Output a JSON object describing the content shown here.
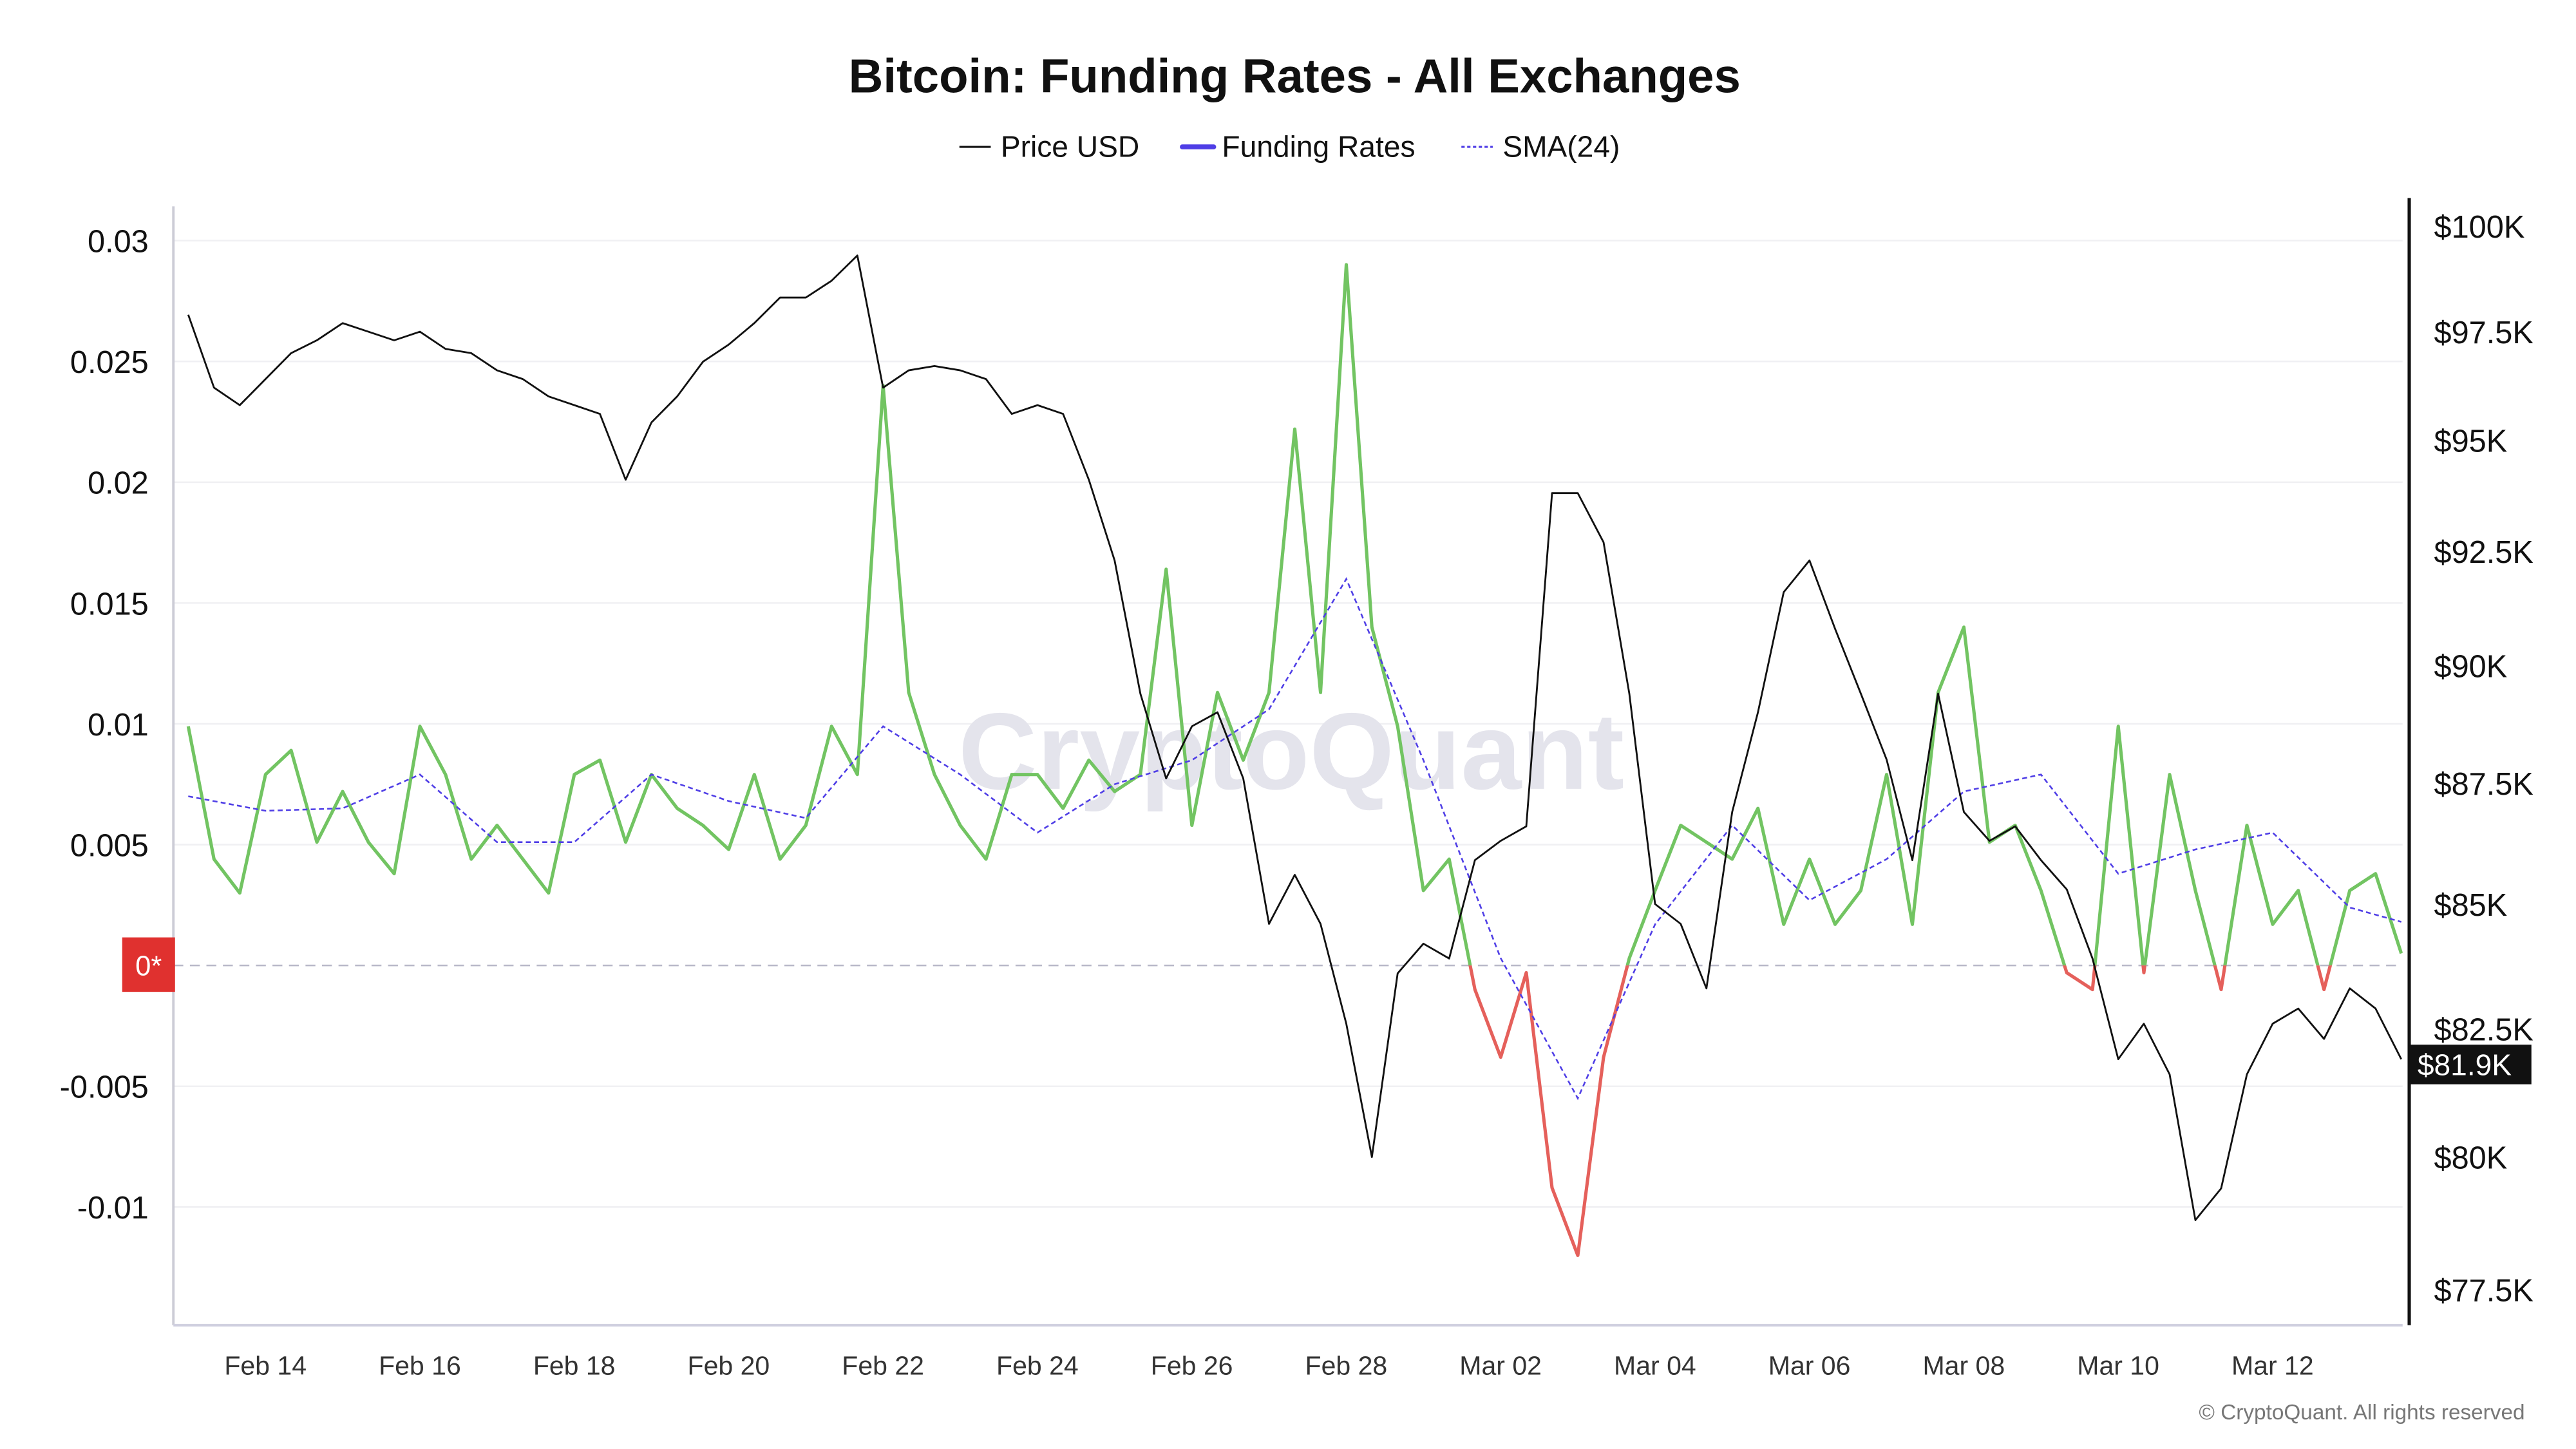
{
  "chart_data": {
    "type": "line",
    "title": "Bitcoin: Funding Rates - All Exchanges",
    "legend": {
      "placement": "top-center",
      "items": [
        {
          "label": "Price USD",
          "color": "#111111",
          "style": "solid-thin"
        },
        {
          "label": "Funding Rates",
          "color": "#4f3ee6",
          "style": "solid"
        },
        {
          "label": "SMA(24)",
          "color": "#4f3ee6",
          "style": "dashed"
        }
      ]
    },
    "colors": {
      "positive": "#72c462",
      "negative": "#e5605b",
      "price": "#111111",
      "sma": "#4f3ee6",
      "zero_badge": "#e0312f",
      "last_price_badge": "#111111"
    },
    "left_axis": {
      "ticks": [
        0.03,
        0.025,
        0.02,
        0.015,
        0.01,
        0.005,
        -0.005,
        -0.01
      ],
      "tick_labels": [
        "0.03",
        "0.025",
        "0.02",
        "0.015",
        "0.01",
        "0.005",
        "-0.005",
        "-0.01"
      ],
      "zero_label": "0*",
      "range": [
        -0.0127,
        0.0315
      ]
    },
    "right_axis": {
      "scale": "log",
      "ticks": [
        100000,
        97500,
        95000,
        92500,
        90000,
        87500,
        85000,
        82500,
        80000,
        77500
      ],
      "tick_labels": [
        "$100K",
        "$97.5K",
        "$95K",
        "$92.5K",
        "$90K",
        "$87.5K",
        "$85K",
        "$82.5K",
        "$80K",
        "$77.5K"
      ],
      "last_value_label": "$81.9K"
    },
    "x_axis": {
      "tick_labels": [
        "Feb 14",
        "Feb 16",
        "Feb 18",
        "Feb 20",
        "Feb 22",
        "Feb 24",
        "Feb 26",
        "Feb 28",
        "Mar 02",
        "Mar 04",
        "Mar 06",
        "Mar 08",
        "Mar 10",
        "Mar 12"
      ]
    },
    "grid": true,
    "x": [
      "Feb 13 00:00",
      "Feb 13 08:00",
      "Feb 13 16:00",
      "Feb 14 00:00",
      "Feb 14 08:00",
      "Feb 14 16:00",
      "Feb 15 00:00",
      "Feb 15 08:00",
      "Feb 15 16:00",
      "Feb 16 00:00",
      "Feb 16 08:00",
      "Feb 16 16:00",
      "Feb 17 00:00",
      "Feb 17 08:00",
      "Feb 17 16:00",
      "Feb 18 00:00",
      "Feb 18 08:00",
      "Feb 18 16:00",
      "Feb 19 00:00",
      "Feb 19 08:00",
      "Feb 19 16:00",
      "Feb 20 00:00",
      "Feb 20 08:00",
      "Feb 20 16:00",
      "Feb 21 00:00",
      "Feb 21 08:00",
      "Feb 21 16:00",
      "Feb 22 00:00",
      "Feb 22 08:00",
      "Feb 22 16:00",
      "Feb 23 00:00",
      "Feb 23 08:00",
      "Feb 23 16:00",
      "Feb 24 00:00",
      "Feb 24 08:00",
      "Feb 24 16:00",
      "Feb 25 00:00",
      "Feb 25 08:00",
      "Feb 25 16:00",
      "Feb 26 00:00",
      "Feb 26 08:00",
      "Feb 26 16:00",
      "Feb 27 00:00",
      "Feb 27 08:00",
      "Feb 27 16:00",
      "Feb 28 00:00",
      "Feb 28 08:00",
      "Feb 28 16:00",
      "Mar 01 00:00",
      "Mar 01 08:00",
      "Mar 01 16:00",
      "Mar 02 00:00",
      "Mar 02 08:00",
      "Mar 02 16:00",
      "Mar 03 00:00",
      "Mar 03 08:00",
      "Mar 03 16:00",
      "Mar 04 00:00",
      "Mar 04 08:00",
      "Mar 04 16:00",
      "Mar 05 00:00",
      "Mar 05 08:00",
      "Mar 05 16:00",
      "Mar 06 00:00",
      "Mar 06 08:00",
      "Mar 06 16:00",
      "Mar 07 00:00",
      "Mar 07 08:00",
      "Mar 07 16:00",
      "Mar 08 00:00",
      "Mar 08 08:00",
      "Mar 08 16:00",
      "Mar 09 00:00",
      "Mar 09 08:00",
      "Mar 09 16:00",
      "Mar 10 00:00",
      "Mar 10 08:00",
      "Mar 10 16:00",
      "Mar 11 00:00",
      "Mar 11 08:00",
      "Mar 11 16:00",
      "Mar 12 00:00",
      "Mar 12 08:00",
      "Mar 12 16:00",
      "Mar 13 00:00",
      "Mar 13 08:00",
      "Mar 13 16:00"
    ],
    "series": [
      {
        "name": "Price USD",
        "axis": "right",
        "values": [
          97900,
          96200,
          95800,
          96400,
          97000,
          97300,
          97700,
          97500,
          97300,
          97500,
          97100,
          97000,
          96600,
          96400,
          96000,
          95800,
          95600,
          94100,
          95400,
          96000,
          96800,
          97200,
          97700,
          98300,
          98300,
          98700,
          99300,
          96200,
          96600,
          96700,
          96600,
          96400,
          95600,
          95800,
          95600,
          94100,
          92300,
          89400,
          87600,
          88700,
          89000,
          87600,
          84600,
          85600,
          84600,
          82600,
          80000,
          83600,
          84200,
          83900,
          85900,
          86300,
          86600,
          93800,
          93800,
          92700,
          89400,
          85000,
          84600,
          83300,
          86900,
          89000,
          91600,
          92300,
          90800,
          89400,
          88000,
          85900,
          89400,
          86900,
          86300,
          86600,
          85900,
          85300,
          83900,
          81900,
          82600,
          81600,
          78800,
          79400,
          81600,
          82600,
          82900,
          82300,
          83300,
          82900,
          81900
        ]
      },
      {
        "name": "Funding Rates",
        "axis": "left",
        "values": [
          0.0099,
          0.0044,
          0.003,
          0.0079,
          0.0089,
          0.0051,
          0.0072,
          0.0051,
          0.0038,
          0.0099,
          0.0079,
          0.0044,
          0.0058,
          0.0044,
          0.003,
          0.0079,
          0.0085,
          0.0051,
          0.0079,
          0.0065,
          0.0058,
          0.0048,
          0.0079,
          0.0044,
          0.0058,
          0.0099,
          0.0079,
          0.024,
          0.0113,
          0.0079,
          0.0058,
          0.0044,
          0.0079,
          0.0079,
          0.0065,
          0.0085,
          0.0072,
          0.0079,
          0.0164,
          0.0058,
          0.0113,
          0.0085,
          0.0113,
          0.0222,
          0.0113,
          0.029,
          0.014,
          0.0099,
          0.0031,
          0.0044,
          -0.001,
          -0.0038,
          -0.0003,
          -0.0092,
          -0.012,
          -0.0038,
          0.0003,
          0.0031,
          0.0058,
          0.0051,
          0.0044,
          0.0065,
          0.0017,
          0.0044,
          0.0017,
          0.0031,
          0.0079,
          0.0017,
          0.0113,
          0.014,
          0.0051,
          0.0058,
          0.0031,
          -0.0003,
          -0.001,
          0.0099,
          -0.0003,
          0.0079,
          0.0031,
          -0.001,
          0.0058,
          0.0017,
          0.0031,
          -0.001,
          0.0031,
          0.0038,
          0.0005
        ]
      },
      {
        "name": "SMA(24)",
        "axis": "left",
        "x": [
          "Feb 13 00:00",
          "Feb 14 00:00",
          "Feb 15 00:00",
          "Feb 16 00:00",
          "Feb 17 00:00",
          "Feb 18 00:00",
          "Feb 19 00:00",
          "Feb 20 00:00",
          "Feb 21 00:00",
          "Feb 22 00:00",
          "Feb 23 00:00",
          "Feb 24 00:00",
          "Feb 25 00:00",
          "Feb 26 00:00",
          "Feb 27 00:00",
          "Feb 28 00:00",
          "Mar 01 00:00",
          "Mar 02 00:00",
          "Mar 03 00:00",
          "Mar 04 00:00",
          "Mar 05 00:00",
          "Mar 06 00:00",
          "Mar 07 00:00",
          "Mar 08 00:00",
          "Mar 09 00:00",
          "Mar 10 00:00",
          "Mar 11 00:00",
          "Mar 12 00:00",
          "Mar 13 00:00",
          "Mar 13 16:00"
        ],
        "values": [
          0.007,
          0.0064,
          0.0065,
          0.0079,
          0.0051,
          0.0051,
          0.0079,
          0.0068,
          0.0061,
          0.0099,
          0.0079,
          0.0055,
          0.0075,
          0.0085,
          0.0106,
          0.016,
          0.0085,
          0.0003,
          -0.0055,
          0.0017,
          0.0058,
          0.0027,
          0.0044,
          0.0072,
          0.0079,
          0.0038,
          0.0048,
          0.0055,
          0.0024,
          0.0018
        ]
      }
    ]
  },
  "watermark": "CryptoQuant",
  "footer": {
    "copyright": "© CryptoQuant. All rights reserved"
  }
}
